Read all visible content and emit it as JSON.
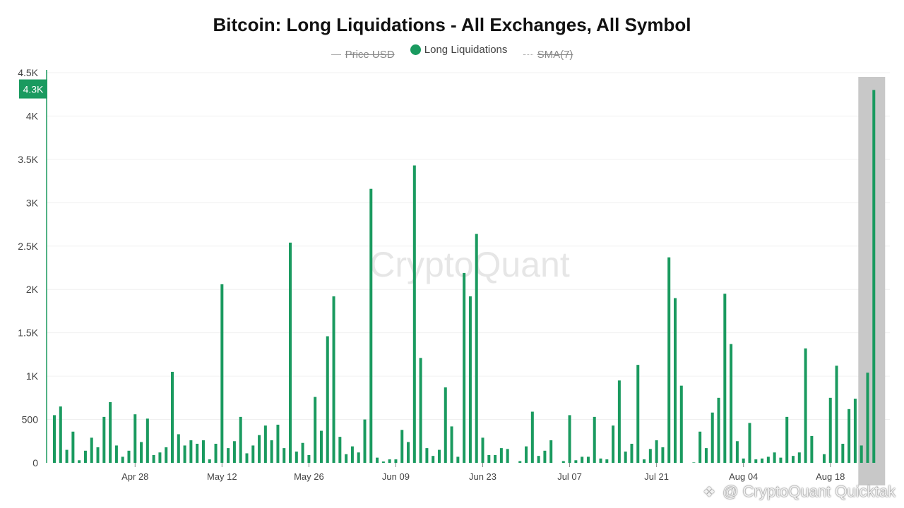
{
  "colors": {
    "bar": "#1a9a5f",
    "highlight_box": "#c8c8c8",
    "axis": "#1a9a5f"
  },
  "footer": {
    "icon": "binance-diamond-icon",
    "text": "@ CryptoQuant Quicktak"
  },
  "chart_data": {
    "type": "bar",
    "title": "Bitcoin: Long Liquidations - All Exchanges, All Symbol",
    "watermark": "CryptoQuant",
    "legend": [
      {
        "name": "Price USD",
        "hidden": true,
        "marker": "line"
      },
      {
        "name": "Long Liquidations",
        "hidden": false,
        "marker": "dot",
        "color": "#1a9a5f"
      },
      {
        "name": "SMA(7)",
        "hidden": true,
        "marker": "dotted"
      }
    ],
    "ylim": [
      0,
      4500
    ],
    "yticks": [
      {
        "value": 0,
        "label": "0"
      },
      {
        "value": 500,
        "label": "500"
      },
      {
        "value": 1000,
        "label": "1K"
      },
      {
        "value": 1500,
        "label": "1.5K"
      },
      {
        "value": 2000,
        "label": "2K"
      },
      {
        "value": 2500,
        "label": "2.5K"
      },
      {
        "value": 3000,
        "label": "3K"
      },
      {
        "value": 3500,
        "label": "3.5K"
      },
      {
        "value": 4000,
        "label": "4K"
      },
      {
        "value": 4500,
        "label": "4.5K"
      }
    ],
    "xticks": [
      {
        "index": 13,
        "label": "Apr 28"
      },
      {
        "index": 27,
        "label": "May 12"
      },
      {
        "index": 41,
        "label": "May 26"
      },
      {
        "index": 55,
        "label": "Jun 09"
      },
      {
        "index": 69,
        "label": "Jun 23"
      },
      {
        "index": 83,
        "label": "Jul 07"
      },
      {
        "index": 97,
        "label": "Jul 21"
      },
      {
        "index": 111,
        "label": "Aug 04"
      },
      {
        "index": 125,
        "label": "Aug 18"
      }
    ],
    "latest_label": {
      "value": 4300,
      "label": "4.3K"
    },
    "series": [
      {
        "name": "Long Liquidations",
        "values": [
          550,
          650,
          150,
          360,
          30,
          140,
          290,
          180,
          530,
          700,
          200,
          70,
          140,
          560,
          240,
          510,
          90,
          120,
          180,
          1050,
          330,
          200,
          260,
          220,
          260,
          40,
          220,
          2060,
          170,
          250,
          530,
          110,
          200,
          320,
          430,
          260,
          440,
          170,
          2540,
          130,
          230,
          90,
          760,
          370,
          1460,
          1920,
          300,
          100,
          190,
          120,
          500,
          3160,
          60,
          15,
          40,
          40,
          380,
          240,
          3430,
          1210,
          170,
          80,
          150,
          870,
          420,
          70,
          2190,
          1920,
          2640,
          290,
          90,
          90,
          170,
          160,
          0,
          20,
          190,
          590,
          80,
          140,
          260,
          0,
          20,
          550,
          30,
          70,
          70,
          530,
          50,
          40,
          430,
          950,
          130,
          220,
          1130,
          40,
          160,
          260,
          180,
          2370,
          1900,
          890,
          0,
          5,
          360,
          170,
          580,
          750,
          1950,
          1370,
          250,
          50,
          460,
          40,
          50,
          70,
          120,
          60,
          530,
          80,
          120,
          1320,
          310,
          0,
          100,
          750,
          1120,
          220,
          620,
          740,
          200,
          1040,
          4300
        ]
      }
    ]
  }
}
